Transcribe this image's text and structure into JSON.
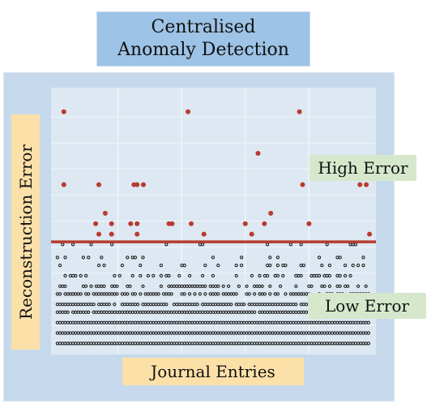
{
  "title": {
    "line1": "Centralised",
    "line2": "Anomaly Detection"
  },
  "ylabel": "Reconstruction Error",
  "xlabel": "Journal Entries",
  "annotations": {
    "high": "High Error",
    "low": "Low Error"
  },
  "colors": {
    "title_bg": "#9dc3e6",
    "panel_bg": "#c6d9ec",
    "plot_bg": "#dde8f2",
    "label_bg": "#fbe0a8",
    "tag_bg": "#d5e8cc",
    "anomaly": "#b83a2f",
    "threshold": "#b83a2f",
    "normal": "#111111"
  },
  "chart_data": {
    "type": "scatter",
    "title": "",
    "xlabel": "Journal Entries",
    "ylabel": "Reconstruction Error",
    "xlim": [
      0,
      100
    ],
    "ylim": [
      0,
      100
    ],
    "threshold": 42,
    "grid": true,
    "anomalies": [
      [
        3,
        92
      ],
      [
        3,
        64
      ],
      [
        14,
        64
      ],
      [
        16,
        53
      ],
      [
        13,
        49
      ],
      [
        14,
        45
      ],
      [
        18,
        49
      ],
      [
        18,
        45
      ],
      [
        24,
        49
      ],
      [
        25,
        64
      ],
      [
        26,
        64
      ],
      [
        26,
        49
      ],
      [
        26,
        45
      ],
      [
        28,
        64
      ],
      [
        36,
        49
      ],
      [
        37,
        49
      ],
      [
        42,
        92
      ],
      [
        43,
        49
      ],
      [
        47,
        45
      ],
      [
        60,
        49
      ],
      [
        62,
        45
      ],
      [
        64,
        76
      ],
      [
        66,
        49
      ],
      [
        68,
        53
      ],
      [
        77,
        92
      ],
      [
        78,
        64
      ],
      [
        80,
        49
      ],
      [
        96,
        64
      ],
      [
        98,
        64
      ],
      [
        99,
        45
      ]
    ],
    "normal_rows": [
      {
        "y": 41,
        "density": 0.12
      },
      {
        "y": 36,
        "density": 0.1
      },
      {
        "y": 33,
        "density": 0.18
      },
      {
        "y": 29,
        "density": 0.3
      },
      {
        "y": 25,
        "density": 0.5
      },
      {
        "y": 22,
        "density": 0.7
      },
      {
        "y": 18,
        "density": 0.9
      },
      {
        "y": 15,
        "density": 0.97
      },
      {
        "y": 11,
        "density": 1.0
      },
      {
        "y": 7,
        "density": 1.0
      },
      {
        "y": 3,
        "density": 1.0
      }
    ]
  }
}
